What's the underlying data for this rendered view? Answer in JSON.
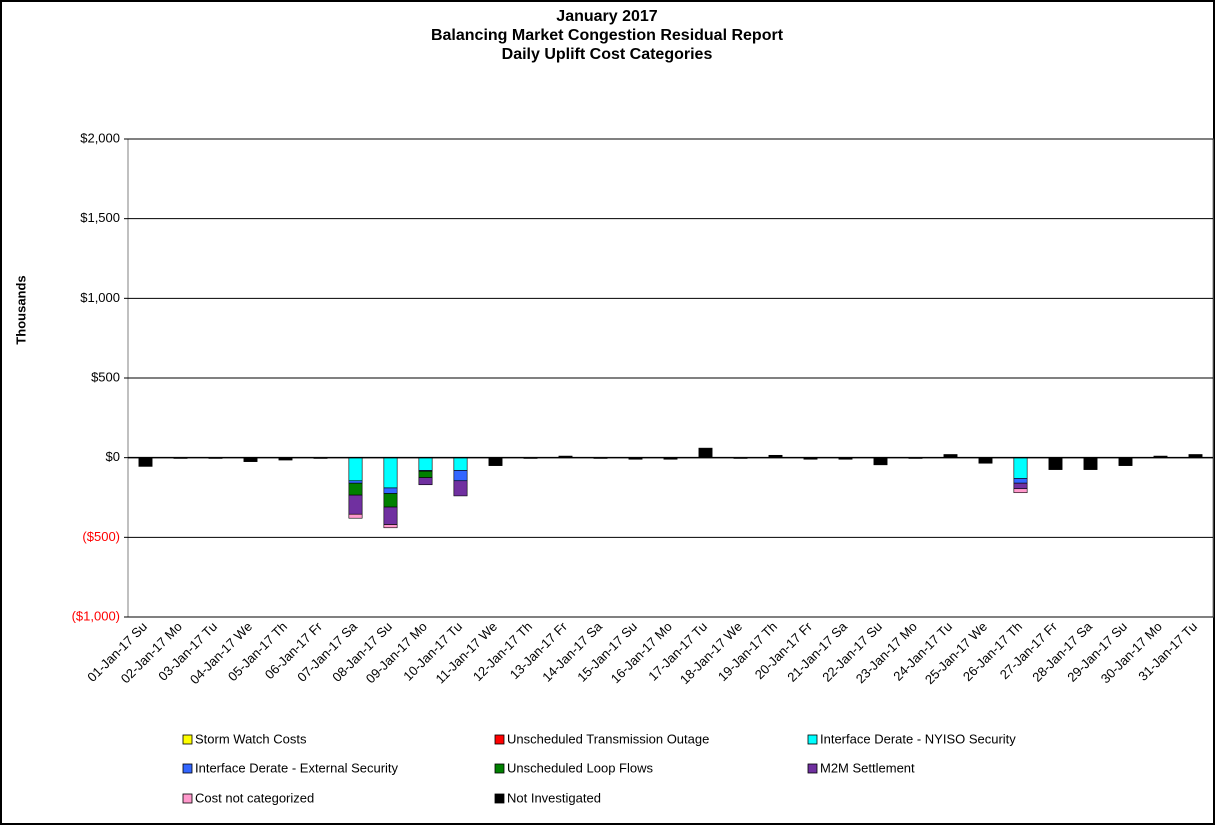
{
  "chart_data": {
    "type": "stacked_bar",
    "title": [
      "January 2017",
      "Balancing Market Congestion Residual Report",
      "Daily Uplift Cost Categories"
    ],
    "y_label": "Thousands",
    "categories": [
      "01-Jan-17 Su",
      "02-Jan-17 Mo",
      "03-Jan-17 Tu",
      "04-Jan-17 We",
      "05-Jan-17 Th",
      "06-Jan-17 Fr",
      "07-Jan-17 Sa",
      "08-Jan-17 Su",
      "09-Jan-17 Mo",
      "10-Jan-17 Tu",
      "11-Jan-17 We",
      "12-Jan-17 Th",
      "13-Jan-17 Fr",
      "14-Jan-17 Sa",
      "15-Jan-17 Su",
      "16-Jan-17 Mo",
      "17-Jan-17 Tu",
      "18-Jan-17 We",
      "19-Jan-17 Th",
      "20-Jan-17 Fr",
      "21-Jan-17 Sa",
      "22-Jan-17 Su",
      "23-Jan-17 Mo",
      "24-Jan-17 Tu",
      "25-Jan-17 We",
      "26-Jan-17 Th",
      "27-Jan-17 Fr",
      "28-Jan-17 Sa",
      "29-Jan-17 Su",
      "30-Jan-17 Mo",
      "31-Jan-17 Tu"
    ],
    "series": [
      {
        "name": "Storm Watch Costs",
        "color": "#ffff00",
        "values": [
          0,
          0,
          0,
          0,
          0,
          0,
          0,
          0,
          0,
          0,
          0,
          0,
          0,
          0,
          0,
          0,
          0,
          0,
          0,
          0,
          0,
          0,
          0,
          0,
          0,
          0,
          0,
          0,
          0,
          0,
          0
        ]
      },
      {
        "name": "Unscheduled Transmission Outage",
        "color": "#ff0000",
        "values": [
          0,
          0,
          0,
          0,
          0,
          0,
          0,
          0,
          0,
          0,
          0,
          0,
          0,
          0,
          0,
          0,
          0,
          0,
          0,
          0,
          0,
          0,
          0,
          0,
          0,
          0,
          0,
          0,
          0,
          0,
          0
        ]
      },
      {
        "name": "Interface Derate - NYISO Security",
        "color": "#00ffff",
        "values": [
          0,
          0,
          0,
          0,
          0,
          0,
          -145,
          -190,
          -80,
          -80,
          0,
          0,
          0,
          0,
          0,
          0,
          0,
          0,
          0,
          0,
          0,
          0,
          0,
          0,
          0,
          -130,
          0,
          0,
          0,
          0,
          0
        ]
      },
      {
        "name": "Interface Derate - External Security",
        "color": "#3366ff",
        "values": [
          0,
          0,
          0,
          0,
          0,
          0,
          -15,
          -35,
          -5,
          -65,
          0,
          0,
          0,
          0,
          0,
          0,
          0,
          0,
          0,
          0,
          0,
          0,
          0,
          0,
          0,
          -30,
          0,
          0,
          0,
          0,
          0
        ]
      },
      {
        "name": "Unscheduled Loop Flows",
        "color": "#008000",
        "values": [
          0,
          0,
          0,
          0,
          0,
          0,
          -75,
          -85,
          -40,
          0,
          0,
          0,
          0,
          0,
          0,
          0,
          0,
          0,
          0,
          0,
          0,
          0,
          0,
          0,
          0,
          0,
          0,
          0,
          0,
          0,
          0
        ]
      },
      {
        "name": "M2M Settlement",
        "color": "#7030a0",
        "values": [
          0,
          0,
          0,
          0,
          0,
          0,
          -120,
          -110,
          -45,
          -95,
          0,
          0,
          0,
          0,
          0,
          0,
          0,
          0,
          0,
          0,
          0,
          0,
          0,
          0,
          0,
          -35,
          0,
          0,
          0,
          0,
          0
        ]
      },
      {
        "name": "Cost not categorized",
        "color": "#ff99cc",
        "values": [
          0,
          0,
          0,
          0,
          0,
          0,
          -25,
          -20,
          0,
          0,
          0,
          0,
          0,
          0,
          0,
          0,
          0,
          0,
          0,
          0,
          0,
          0,
          0,
          0,
          0,
          -25,
          0,
          0,
          0,
          0,
          0
        ]
      },
      {
        "name": "Not Investigated",
        "color": "#000000",
        "values": [
          -55,
          -5,
          -5,
          -25,
          -15,
          -5,
          0,
          0,
          0,
          0,
          -50,
          -5,
          10,
          -5,
          -10,
          -10,
          60,
          -5,
          15,
          -10,
          -10,
          -45,
          -5,
          20,
          -35,
          0,
          -75,
          -75,
          -50,
          10,
          20
        ]
      }
    ],
    "ylim": [
      -1000,
      2000
    ],
    "yticks": [
      {
        "value": -1000,
        "label": "($1,000)"
      },
      {
        "value": -500,
        "label": "($500)"
      },
      {
        "value": 0,
        "label": "$0"
      },
      {
        "value": 500,
        "label": "$500"
      },
      {
        "value": 1000,
        "label": "$1,000"
      },
      {
        "value": 1500,
        "label": "$1,500"
      },
      {
        "value": 2000,
        "label": "$2,000"
      }
    ],
    "negative_tick_color": "#ff0000",
    "grid": true,
    "legend": "bottom"
  }
}
